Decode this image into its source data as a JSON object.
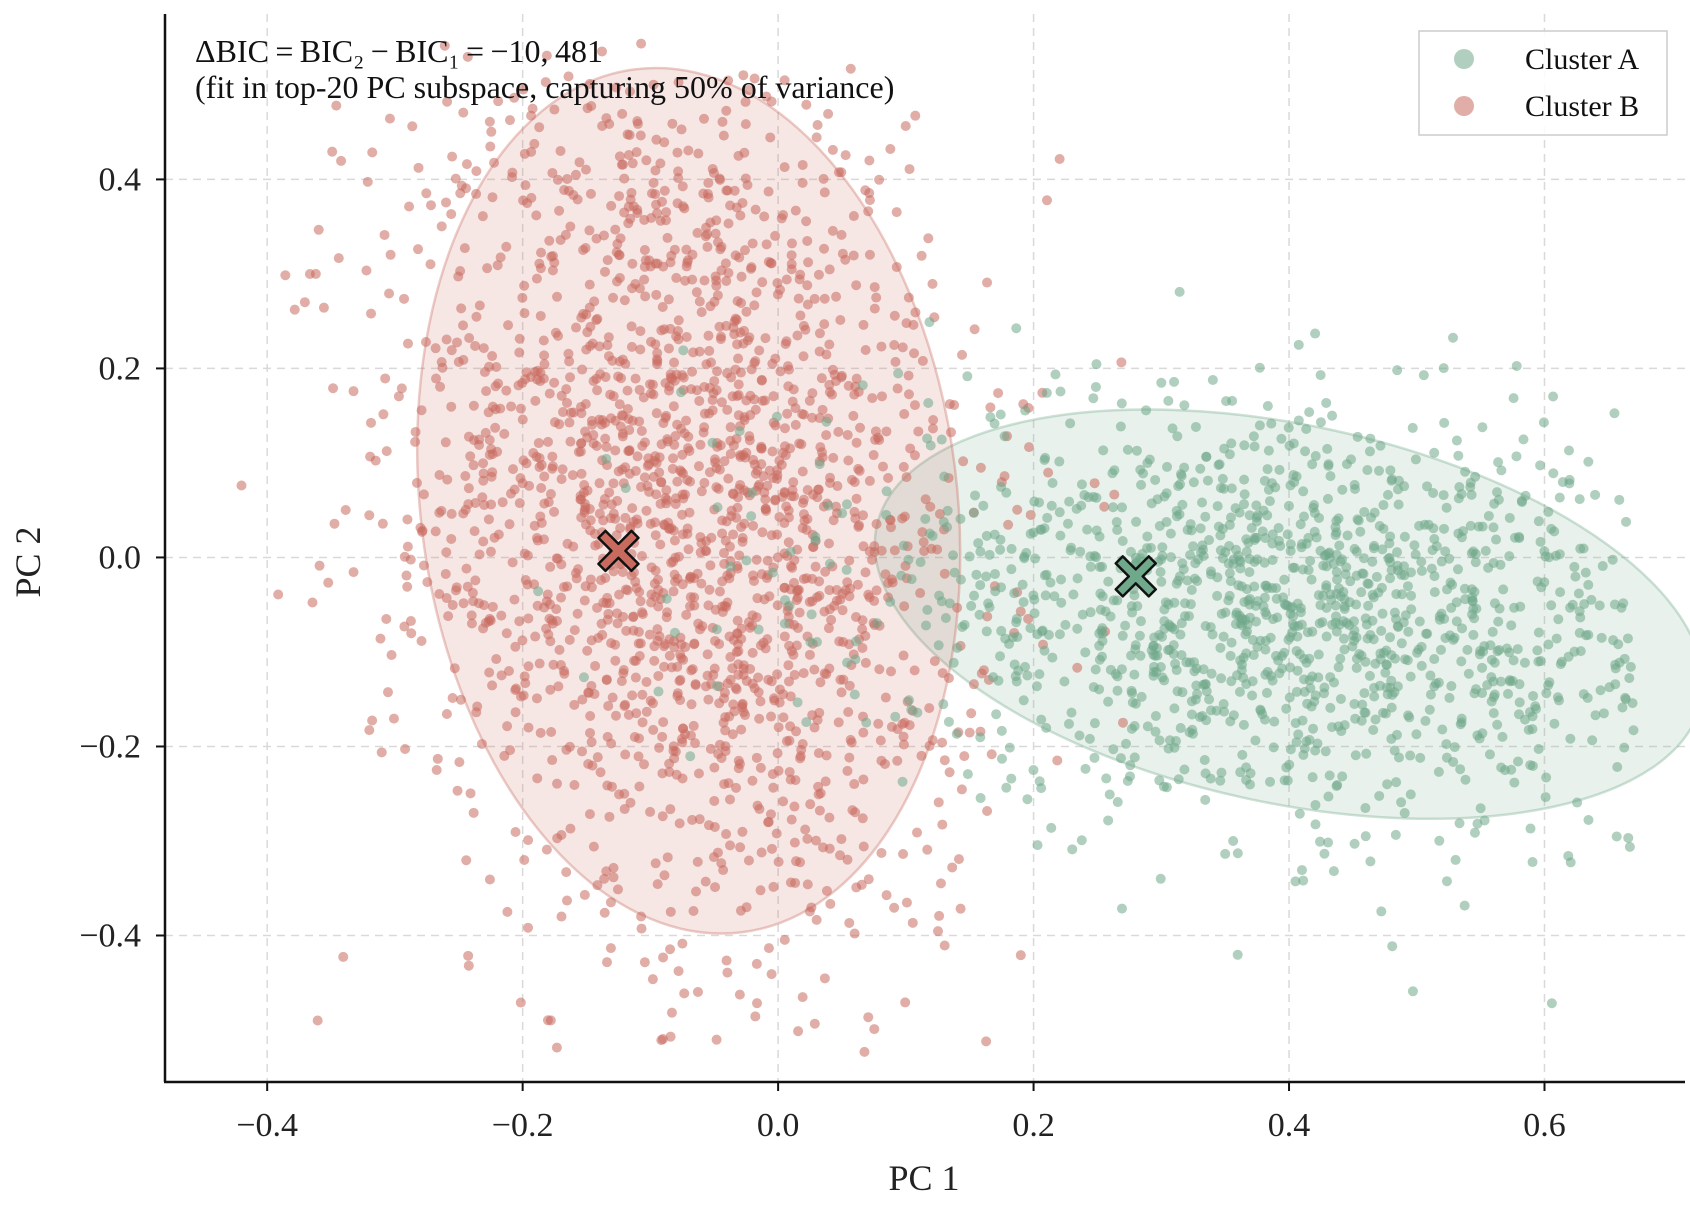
{
  "chart_data": {
    "type": "scatter",
    "xlabel": "PC 1",
    "ylabel": "PC 2",
    "xlim": [
      -0.48,
      0.71
    ],
    "ylim": [
      -0.555,
      0.575
    ],
    "xticks": [
      -0.4,
      -0.2,
      0.0,
      0.2,
      0.4,
      0.6
    ],
    "xtick_labels": [
      "−0.4",
      "−0.2",
      "0.0",
      "0.2",
      "0.4",
      "0.6"
    ],
    "yticks": [
      -0.4,
      -0.2,
      0.0,
      0.2,
      0.4
    ],
    "ytick_labels": [
      "−0.4",
      "−0.2",
      "0.0",
      "0.2",
      "0.4"
    ],
    "grid": true,
    "legend_position": "top-right",
    "annotation": {
      "line1": "ΔBIC = BIC₂ − BIC₁ = −10, 481",
      "line2": "(fit in top-20 PC subspace, capturing 50% of variance)"
    },
    "series": [
      {
        "name": "Cluster A",
        "color": "#6fa88a",
        "point_count": 1400,
        "centroid": [
          0.28,
          -0.02
        ],
        "ellipse": {
          "center": [
            0.4,
            -0.06
          ],
          "semi_axes": [
            0.33,
            0.2
          ],
          "angle_deg": -12
        }
      },
      {
        "name": "Cluster B",
        "color": "#c96a5f",
        "point_count": 2000,
        "centroid": [
          -0.125,
          0.007
        ],
        "ellipse": {
          "center": [
            -0.07,
            0.06
          ],
          "semi_axes": [
            0.21,
            0.46
          ],
          "angle_deg": 7
        }
      }
    ]
  }
}
